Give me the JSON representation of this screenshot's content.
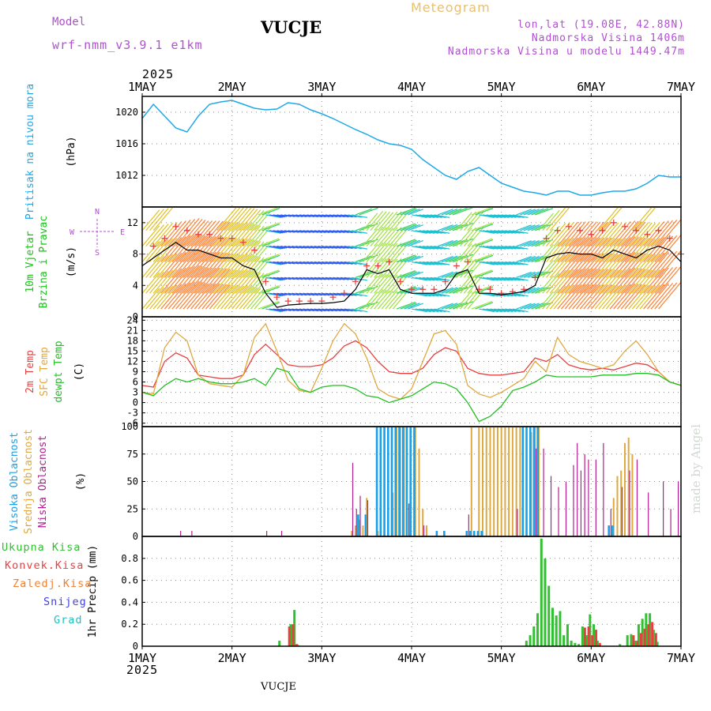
{
  "header": {
    "model_label": "Model",
    "model_name": "wrf-nmm_v3.9.1 e1km",
    "station": "VUCJE",
    "title": "Meteogram",
    "coords": "lon,lat (19.08E, 42.88N)",
    "elevation": "Nadmorska Visina 1406m",
    "model_elevation": "Nadmorska Visina u modelu 1449.47m"
  },
  "footer": {
    "station": "VUCJE",
    "credit": "made by Angel"
  },
  "time_axis": {
    "year": "2025",
    "labels": [
      "1MAY",
      "2MAY",
      "3MAY",
      "4MAY",
      "5MAY",
      "6MAY",
      "7MAY"
    ],
    "start_hour": 0,
    "end_hour": 144
  },
  "colors": {
    "pressure": "#1ea8e8",
    "wind_speed": "#000000",
    "gust": "#e83c3c",
    "temp_2m": "#e84040",
    "temp_sfc": "#e0a840",
    "dewpoint": "#20c020",
    "cloud_high": "#18a0e8",
    "cloud_mid": "#e0a840",
    "cloud_low": "#b02090",
    "precip_total": "#30c030",
    "precip_conv": "#e84040",
    "precip_frz": "#f08030",
    "snow": "#4040e0",
    "graupel": "#20c0c0",
    "panel_label_purple": "#b050d0"
  },
  "chart_data": [
    {
      "type": "line",
      "name": "pressure",
      "ylabel_lines": [
        "Pritisak na nivou mora",
        "(hPa)"
      ],
      "ylim": [
        1008,
        1022
      ],
      "yticks": [
        1012,
        1016,
        1020
      ],
      "grid": true,
      "x": [
        0,
        3,
        6,
        9,
        12,
        15,
        18,
        21,
        24,
        27,
        30,
        33,
        36,
        39,
        42,
        45,
        48,
        51,
        54,
        57,
        60,
        63,
        66,
        69,
        72,
        75,
        78,
        81,
        84,
        87,
        90,
        93,
        96,
        99,
        102,
        105,
        108,
        111,
        114,
        117,
        120,
        123,
        126,
        129,
        132,
        135,
        138,
        141,
        144
      ],
      "values": [
        1019.2,
        1021.0,
        1019.5,
        1018.0,
        1017.5,
        1019.5,
        1021.0,
        1021.3,
        1021.5,
        1021.0,
        1020.5,
        1020.3,
        1020.4,
        1021.2,
        1021.0,
        1020.3,
        1019.8,
        1019.2,
        1018.5,
        1017.8,
        1017.2,
        1016.5,
        1016.0,
        1015.8,
        1015.3,
        1014.0,
        1013.0,
        1012.0,
        1011.5,
        1012.5,
        1013.0,
        1012.0,
        1011.0,
        1010.5,
        1010.0,
        1009.8,
        1009.5,
        1010.0,
        1010.0,
        1009.5,
        1009.5,
        1009.8,
        1010.0,
        1010.0,
        1010.3,
        1011.0,
        1012.0,
        1011.8,
        1011.8
      ]
    },
    {
      "type": "line",
      "name": "wind",
      "ylabel_lines": [
        "10m Vjetar",
        "Brzina i Pravac",
        "(m/s)"
      ],
      "compass": [
        "N",
        "W",
        "E",
        "S"
      ],
      "ylim": [
        0,
        14
      ],
      "yticks": [
        0,
        4,
        8,
        12
      ],
      "grid": true,
      "x": [
        0,
        3,
        6,
        9,
        12,
        15,
        18,
        21,
        24,
        27,
        30,
        33,
        36,
        39,
        42,
        45,
        48,
        51,
        54,
        57,
        60,
        63,
        66,
        69,
        72,
        75,
        78,
        81,
        84,
        87,
        90,
        93,
        96,
        99,
        102,
        105,
        108,
        111,
        114,
        117,
        120,
        123,
        126,
        129,
        132,
        135,
        138,
        141,
        144
      ],
      "series": [
        {
          "name": "speed",
          "values": [
            6.5,
            7.5,
            8.5,
            9.5,
            8.5,
            8.5,
            8.0,
            7.5,
            7.5,
            6.5,
            6.0,
            3.0,
            1.2,
            1.5,
            1.6,
            1.7,
            1.7,
            1.8,
            2.0,
            3.5,
            6.0,
            5.5,
            6.0,
            3.5,
            3.0,
            3.0,
            3.0,
            3.5,
            5.5,
            6.0,
            3.0,
            3.0,
            2.8,
            3.0,
            3.2,
            4.0,
            7.5,
            8.0,
            8.2,
            8.0,
            8.0,
            7.5,
            8.5,
            8.0,
            7.5,
            8.5,
            9.0,
            8.5,
            7.0
          ]
        },
        {
          "name": "gust",
          "values": [
            8.0,
            9.0,
            10.0,
            11.5,
            11.0,
            10.5,
            10.5,
            10.0,
            10.0,
            9.5,
            8.5,
            4.5,
            2.5,
            2.0,
            2.0,
            2.0,
            2.0,
            2.5,
            3.0,
            4.5,
            6.5,
            6.5,
            7.0,
            4.5,
            3.5,
            3.5,
            3.5,
            4.5,
            6.5,
            7.0,
            3.5,
            3.5,
            3.0,
            3.2,
            3.5,
            5.0,
            10.0,
            11.0,
            11.5,
            11.0,
            10.5,
            11.0,
            12.0,
            11.5,
            11.0,
            10.5,
            11.0,
            10.0,
            8.0
          ]
        }
      ]
    },
    {
      "type": "line",
      "name": "temperature",
      "ylabel_lines": [
        "2m Temp",
        "SFC Temp",
        "dewpt Temp",
        "(C)"
      ],
      "ylim": [
        -7,
        25
      ],
      "yticks": [
        -6,
        -3,
        0,
        3,
        6,
        9,
        12,
        15,
        18,
        21,
        24
      ],
      "grid": true,
      "x": [
        0,
        3,
        6,
        9,
        12,
        15,
        18,
        21,
        24,
        27,
        30,
        33,
        36,
        39,
        42,
        45,
        48,
        51,
        54,
        57,
        60,
        63,
        66,
        69,
        72,
        75,
        78,
        81,
        84,
        87,
        90,
        93,
        96,
        99,
        102,
        105,
        108,
        111,
        114,
        117,
        120,
        123,
        126,
        129,
        132,
        135,
        138,
        141,
        144
      ],
      "series": [
        {
          "name": "2m",
          "values": [
            5,
            4.5,
            12,
            14.5,
            13,
            8,
            7.5,
            7,
            7,
            8,
            14,
            17,
            14,
            11,
            10.5,
            10.5,
            11,
            13,
            16.5,
            18,
            16,
            12,
            9,
            8.5,
            8.5,
            10,
            14,
            16,
            15,
            10,
            8.5,
            8,
            8,
            8.5,
            9,
            13,
            12,
            14,
            11,
            10,
            9.5,
            10,
            9.5,
            10.5,
            11.5,
            11,
            9,
            6,
            5
          ]
        },
        {
          "name": "sfc",
          "values": [
            3,
            2.5,
            16,
            20.5,
            18,
            8,
            5.5,
            5,
            4.5,
            8,
            19,
            23,
            15,
            6.5,
            3.5,
            3,
            10,
            18,
            23,
            20,
            13,
            4,
            2,
            1,
            4,
            12,
            20,
            21,
            17,
            5,
            2.5,
            1.5,
            3,
            5,
            7,
            12,
            9,
            19,
            14,
            12,
            11,
            10,
            11,
            15,
            18,
            14,
            9,
            6,
            5
          ]
        },
        {
          "name": "dewpt",
          "values": [
            3,
            2,
            5,
            7,
            6,
            7,
            6,
            5.5,
            5.5,
            6,
            7,
            5,
            10,
            9,
            4,
            3,
            4.5,
            5,
            5,
            4,
            2,
            1.5,
            0,
            1,
            2,
            4,
            6,
            5.5,
            4,
            0,
            -5.5,
            -4,
            -1,
            3.5,
            4.5,
            6,
            8,
            7.5,
            7.5,
            7.5,
            7.5,
            8,
            8,
            8,
            8.5,
            8.5,
            8,
            6,
            5
          ]
        }
      ]
    },
    {
      "type": "bar",
      "name": "cloud",
      "ylabel_lines": [
        "Visoka Oblacnost",
        "Srednja Oblacnost",
        "Niska Oblacnost",
        "(%)"
      ],
      "ylim": [
        0,
        100
      ],
      "yticks": [
        0,
        25,
        50,
        75,
        100
      ],
      "grid": true,
      "series": [
        {
          "name": "high",
          "x": [
            58,
            60,
            63,
            64,
            65,
            66,
            67,
            68,
            69,
            70,
            71,
            72,
            73,
            79,
            81,
            87,
            88,
            89,
            90,
            91,
            102,
            103,
            104,
            105,
            106,
            125,
            126
          ],
          "values": [
            20,
            20,
            100,
            100,
            100,
            100,
            100,
            100,
            100,
            100,
            100,
            100,
            100,
            5,
            5,
            5,
            5,
            5,
            5,
            5,
            100,
            100,
            100,
            100,
            100,
            10,
            10
          ]
        },
        {
          "name": "mid",
          "x": [
            56,
            57,
            58,
            59,
            60,
            63,
            67,
            68,
            69,
            70,
            73,
            74,
            75,
            76,
            88,
            90,
            91,
            92,
            93,
            94,
            95,
            96,
            97,
            98,
            99,
            100,
            101,
            104,
            105,
            106,
            126,
            127,
            128,
            129,
            130,
            131
          ],
          "values": [
            5,
            10,
            15,
            10,
            35,
            5,
            40,
            100,
            100,
            100,
            100,
            80,
            25,
            10,
            100,
            100,
            100,
            100,
            100,
            100,
            100,
            100,
            100,
            100,
            100,
            100,
            100,
            95,
            100,
            100,
            35,
            55,
            60,
            85,
            90,
            75
          ]
        },
        {
          "name": "low",
          "x": [
            10,
            13,
            33,
            37,
            56,
            57,
            58,
            60,
            71,
            75,
            87,
            100,
            105,
            107,
            109,
            111,
            113,
            115,
            116,
            117,
            118,
            119,
            121,
            123,
            125,
            128,
            130,
            132,
            135,
            139,
            141,
            143
          ],
          "values": [
            5,
            5,
            5,
            5,
            67,
            25,
            37,
            33,
            30,
            10,
            20,
            25,
            80,
            80,
            55,
            45,
            50,
            65,
            85,
            60,
            75,
            70,
            70,
            85,
            25,
            45,
            60,
            70,
            40,
            50,
            25,
            50
          ]
        }
      ]
    },
    {
      "type": "bar",
      "name": "precip",
      "ylabel_lines": [
        "1hr Precip (mm)"
      ],
      "legend": [
        "Ukupna Kisa",
        "Konvek.Kisa",
        "Zaledj.Kisa",
        "Snijeg",
        "Grad"
      ],
      "ylim": [
        0,
        1.0
      ],
      "yticks": [
        0,
        0.2,
        0.4,
        0.6,
        0.8
      ],
      "grid": true,
      "series": [
        {
          "name": "total",
          "x": [
            37,
            40,
            41,
            42,
            103,
            104,
            105,
            106,
            107,
            108,
            109,
            110,
            111,
            112,
            113,
            114,
            115,
            116,
            117,
            118,
            119,
            120,
            121,
            122,
            128,
            130,
            131,
            132,
            133,
            134,
            135,
            136,
            137,
            138
          ],
          "values": [
            0.05,
            0.2,
            0.33,
            0.01,
            0.05,
            0.1,
            0.18,
            0.3,
            0.98,
            0.8,
            0.55,
            0.35,
            0.28,
            0.32,
            0.1,
            0.2,
            0.05,
            0.03,
            0.02,
            0.18,
            0.1,
            0.29,
            0.2,
            0.05,
            0.02,
            0.1,
            0.11,
            0.05,
            0.2,
            0.25,
            0.3,
            0.3,
            0.15,
            0.04
          ]
        },
        {
          "name": "convective",
          "x": [
            39,
            40,
            41,
            118,
            119,
            120,
            121,
            122,
            131,
            132,
            133,
            134,
            135,
            136,
            137
          ],
          "values": [
            0.18,
            0.2,
            0.02,
            0.17,
            0.18,
            0.1,
            0.15,
            0.03,
            0.1,
            0.05,
            0.12,
            0.16,
            0.2,
            0.22,
            0.12
          ]
        }
      ]
    }
  ]
}
